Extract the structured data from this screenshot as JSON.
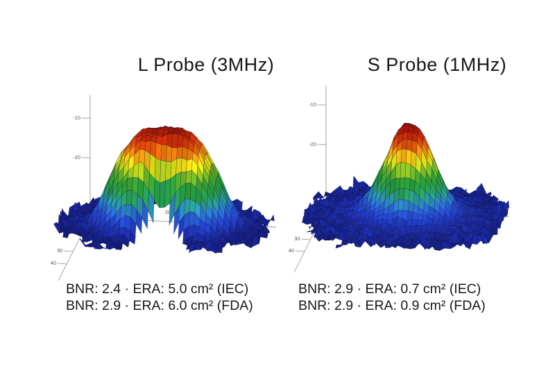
{
  "figure": {
    "background": "#ffffff",
    "text_color": "#161616",
    "description": "Ultrasound therapy probe beam profile 3D surface plots"
  },
  "palette": {
    "type": "jet-like",
    "stops": [
      [
        0,
        "#10166e"
      ],
      [
        0.1,
        "#1c2ba6"
      ],
      [
        0.18,
        "#2341d2"
      ],
      [
        0.26,
        "#2a66d8"
      ],
      [
        0.33,
        "#2d9ac0"
      ],
      [
        0.4,
        "#2aa061"
      ],
      [
        0.48,
        "#23a03a"
      ],
      [
        0.57,
        "#4fae2e"
      ],
      [
        0.64,
        "#a9cc1e"
      ],
      [
        0.7,
        "#f0e816"
      ],
      [
        0.76,
        "#f6ae12"
      ],
      [
        0.83,
        "#ee690c"
      ],
      [
        0.9,
        "#dc3409"
      ],
      [
        1,
        "#9c1204"
      ]
    ]
  },
  "chart_data": [
    {
      "type": "surface3d",
      "title": "L Probe (3MHz)",
      "probe": "L Probe",
      "frequency": "3MHz",
      "z_axis": {
        "tick_labels": [
          "-10",
          "-20"
        ],
        "implied_units": "dB",
        "range_db": [
          -40,
          0
        ]
      },
      "floor_axis_right_tick_labels": [
        "20"
      ],
      "floor_axis_left_tick_labels": [
        "30",
        "40"
      ],
      "annotations": [
        "BNR: 2.4 · ERA: 5.0 cm² (IEC)",
        "BNR: 2.9 · ERA: 6.0 cm² (FDA)"
      ],
      "metrics": {
        "IEC": {
          "BNR": 2.4,
          "ERA_cm2": 5.0
        },
        "FDA": {
          "BNR": 2.9,
          "ERA_cm2": 6.0
        }
      },
      "surface_model": {
        "shape": "wide flat dome with arch-shaped front notch and ragged blue base ring",
        "grid": 40,
        "base_db": -40,
        "peak_db": -9,
        "dome": {
          "amp_db": 31.5,
          "radius": 0.58,
          "power": 3.5,
          "center": [
            0.01,
            -0.03
          ],
          "y_scale": 1.12
        },
        "notch": {
          "depth_db": 24,
          "center_x": 0.03,
          "sigma": 0.19,
          "y_start": 0.08,
          "y_end": 0.45
        },
        "arch_mask": {
          "y0": 0.34,
          "curvature": 4.5,
          "center_x": 0.03
        },
        "footprint": {
          "radius": 1.02,
          "ragged": 0.18
        },
        "floor": {
          "level_db": -38.6,
          "noise_db": 3.8
        },
        "noise_db": 3.0,
        "seed": 11
      }
    },
    {
      "type": "surface3d",
      "title": "S Probe (1MHz)",
      "probe": "S Probe",
      "frequency": "1MHz",
      "z_axis": {
        "tick_labels": [
          "-10",
          "-20"
        ],
        "implied_units": "dB",
        "range_db": [
          -40,
          0
        ]
      },
      "floor_axis_right_tick_labels": [],
      "floor_axis_left_tick_labels": [
        "30",
        "40"
      ],
      "annotations": [
        "BNR: 2.9 · ERA: 0.7 cm² (IEC)",
        "BNR: 2.9 · ERA: 0.9 cm² (FDA)"
      ],
      "metrics": {
        "IEC": {
          "BNR": 2.9,
          "ERA_cm2": 0.7
        },
        "FDA": {
          "BNR": 2.9,
          "ERA_cm2": 0.9
        }
      },
      "surface_model": {
        "shape": "narrow steep peak on wide spiky blue floor",
        "grid": 40,
        "base_db": -40,
        "peak_db": -9,
        "dome": {
          "amp_db": 27.5,
          "radius": 0.33,
          "power": 2.2,
          "center": [
            0.06,
            -0.02
          ],
          "y_scale": 1.05
        },
        "skirt": {
          "amp_db": 5.5,
          "radius": 0.8
        },
        "footprint": {
          "radius": 1.18,
          "ragged": 0.22
        },
        "floor": {
          "level_db": -38.2,
          "noise_db": 4.2
        },
        "noise_db": 3.2,
        "seed": 23
      }
    }
  ]
}
